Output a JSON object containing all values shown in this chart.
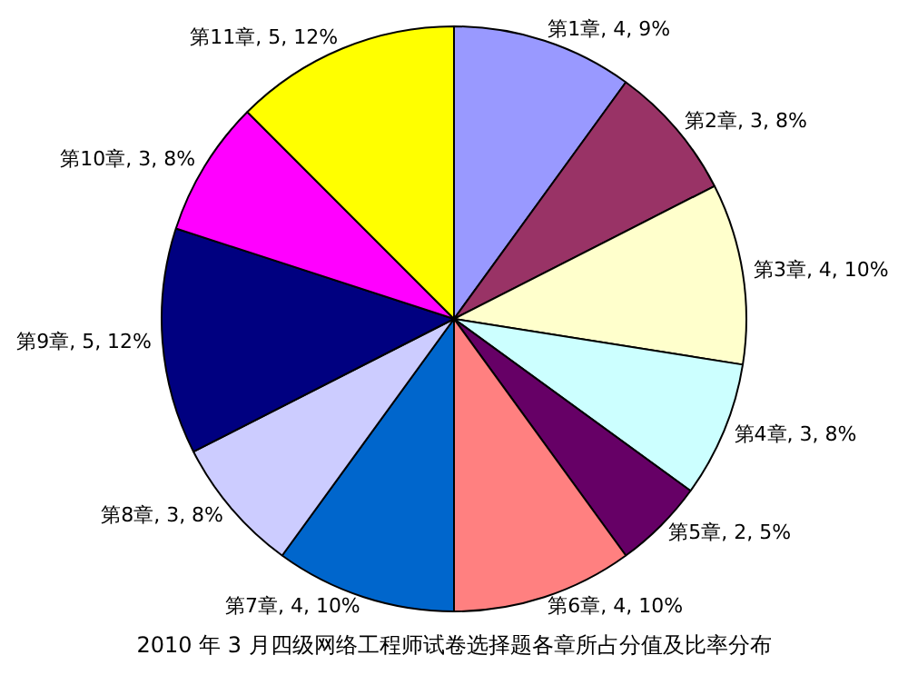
{
  "chart_data": {
    "type": "pie",
    "title": "2010 年 3 月四级网络工程师试卷选择题各章所占分值及比率分布",
    "categories": [
      "第1章",
      "第2章",
      "第3章",
      "第4章",
      "第5章",
      "第6章",
      "第7章",
      "第8章",
      "第9章",
      "第10章",
      "第11章"
    ],
    "values": [
      4,
      3,
      4,
      3,
      2,
      4,
      4,
      3,
      5,
      3,
      5
    ],
    "value_labels": [
      "4, 9%",
      "3, 8%",
      "4, 10%",
      "3, 8%",
      "2, 5%",
      "4, 10%",
      "4, 10%",
      "3, 8%",
      "5, 12%",
      "3, 8%",
      "5, 12%"
    ],
    "colors": [
      "#9999ff",
      "#993366",
      "#ffffcc",
      "#ccffff",
      "#660066",
      "#ff8080",
      "#0066cc",
      "#ccccff",
      "#000080",
      "#ff00ff",
      "#ffff00"
    ],
    "legend": false
  }
}
